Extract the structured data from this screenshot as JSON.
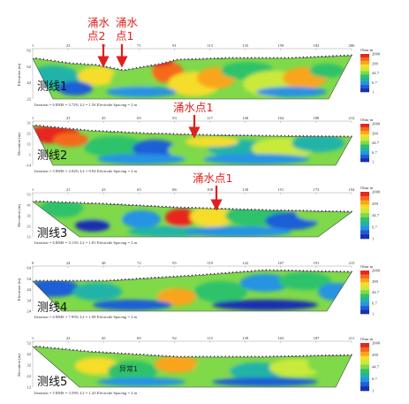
{
  "colorbar": {
    "title": "Ohm·m",
    "ticks": [
      "2000",
      "299",
      "44.7",
      "6.7",
      "1.0"
    ],
    "colors": [
      "#e8261e",
      "#f46a1c",
      "#f9a51c",
      "#f5dd29",
      "#c9ea3a",
      "#7fd94a",
      "#2fc26a",
      "#21b3a8",
      "#2893e3",
      "#1f5fd6",
      "#1b2fb0"
    ]
  },
  "annotations": {
    "arrow_color": "#e0201b",
    "p1_a": "涌水",
    "p1_b": "点2",
    "p1_c": "涌水",
    "p1_d": "点1",
    "p2": "涌水点1",
    "p3": "涌水点1"
  },
  "chart_data": [
    {
      "type": "heatmap",
      "title": "测线1",
      "ylabel": "Elevation (m)",
      "x_ticks": [
        "1",
        "23",
        "45",
        "71",
        "91",
        "113",
        "135",
        "159",
        "182",
        "206"
      ],
      "y_ticks": [
        "82",
        "62",
        "42",
        "22"
      ],
      "colorbar_title": "Ohm·m",
      "colorbar_ticks": [
        2000,
        299,
        44.7,
        6.7,
        1.0
      ],
      "footer": "Iteration = 6    RMS = 3.72%    L2 = 1.56    Electrode Spacing = 2 m"
    },
    {
      "type": "heatmap",
      "title": "测线2",
      "ylabel": "Elevation (m)",
      "x_ticks": [
        "1",
        "23",
        "45",
        "69",
        "93",
        "117",
        "140",
        "164",
        "188",
        "212"
      ],
      "y_ticks": [
        "31",
        "21",
        "11",
        "1",
        "-14"
      ],
      "colorbar_title": "Ohm·m",
      "colorbar_ticks": [
        2000,
        299,
        44.7,
        6.7,
        1.0
      ],
      "labels": [
        "异常1",
        "粉砂"
      ],
      "footer": "Iteration = 5    RMS = 2.02%    L2 = 0.94    Electrode Spacing = 2 m"
    },
    {
      "type": "heatmap",
      "title": "测线3",
      "ylabel": "Elevation (m)",
      "x_ticks": [
        "1",
        "21",
        "43",
        "65",
        "86",
        "108",
        "130",
        "151",
        "173",
        "194"
      ],
      "y_ticks": [
        "51",
        "41",
        "31",
        "21",
        "11"
      ],
      "colorbar_title": "Ohm·m",
      "colorbar_ticks": [
        2000,
        299,
        44.7,
        6.7,
        1.0
      ],
      "labels": [
        "异常1"
      ],
      "footer": "Iteration = 6    RMS = 4.13%    L2 = 1.81    Electrode Spacing = 2 m"
    },
    {
      "type": "heatmap",
      "title": "测线4",
      "ylabel": "Elevation (m)",
      "x_ticks": [
        "0",
        "24",
        "48",
        "72",
        "95",
        "119",
        "142",
        "167",
        "191",
        "215"
      ],
      "y_ticks": [
        "64",
        "54",
        "44",
        "34",
        "24"
      ],
      "colorbar_title": "Ohm·m",
      "colorbar_ticks": [
        2000,
        299,
        44.7,
        6.7,
        1.0
      ],
      "footer": "Iteration = 6    RMS = 7.95%    L2 = 1.08    Electrode Spacing = 2 m"
    },
    {
      "type": "heatmap",
      "title": "测线5",
      "ylabel": "Elevation (m)",
      "x_ticks": [
        "1",
        "23",
        "45",
        "69",
        "92",
        "115",
        "139",
        "163",
        "187",
        "211"
      ],
      "y_ticks": [
        "52",
        "42",
        "32",
        "22",
        "12"
      ],
      "colorbar_title": "Ohm·m",
      "colorbar_ticks": [
        2000,
        299,
        44.7,
        6.7,
        1.0
      ],
      "labels": [
        "异常1"
      ],
      "footer": "Iteration = 5    RMS = 3.59%    L2 = 1.43    Electrode Spacing = 2 m"
    }
  ]
}
